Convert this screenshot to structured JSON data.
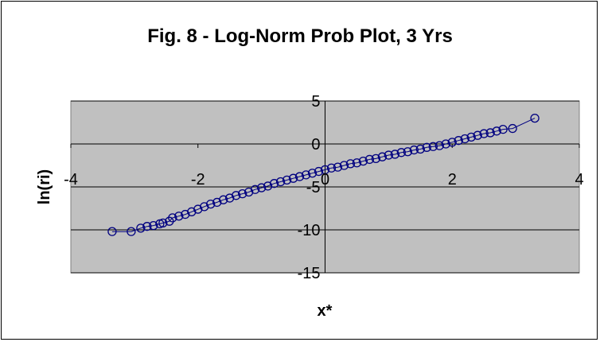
{
  "chart_data": {
    "type": "line",
    "title": "Fig. 8 - Log-Norm Prob Plot, 3 Yrs",
    "xlabel": "x*",
    "ylabel": "ln(ri)",
    "xlim": [
      -4,
      4
    ],
    "ylim": [
      -15,
      5
    ],
    "x_ticks": [
      "-4",
      "-2",
      "0",
      "2",
      "4"
    ],
    "y_ticks": [
      "5",
      "0",
      "-5",
      "-10",
      "-15"
    ],
    "grid": "horizontal",
    "legend": "none",
    "series": [
      {
        "marker": "open-circle",
        "line": true,
        "x": [
          -3.35,
          -3.05,
          -2.9,
          -2.8,
          -2.7,
          -2.6,
          -2.55,
          -2.45,
          -2.4,
          -2.3,
          -2.2,
          -2.1,
          -2.0,
          -1.9,
          -1.8,
          -1.7,
          -1.6,
          -1.5,
          -1.4,
          -1.3,
          -1.2,
          -1.1,
          -1.0,
          -0.9,
          -0.8,
          -0.7,
          -0.6,
          -0.5,
          -0.4,
          -0.3,
          -0.2,
          -0.1,
          0.0,
          0.1,
          0.2,
          0.3,
          0.4,
          0.5,
          0.6,
          0.7,
          0.8,
          0.9,
          1.0,
          1.1,
          1.2,
          1.3,
          1.4,
          1.5,
          1.6,
          1.7,
          1.8,
          1.9,
          2.0,
          2.1,
          2.2,
          2.3,
          2.4,
          2.5,
          2.6,
          2.7,
          2.8,
          2.95,
          3.3
        ],
        "y": [
          -10.2,
          -10.2,
          -9.8,
          -9.6,
          -9.5,
          -9.3,
          -9.2,
          -9.0,
          -8.6,
          -8.4,
          -8.2,
          -7.9,
          -7.6,
          -7.3,
          -7.0,
          -6.8,
          -6.5,
          -6.3,
          -6.0,
          -5.8,
          -5.6,
          -5.3,
          -5.1,
          -4.9,
          -4.6,
          -4.4,
          -4.2,
          -4.0,
          -3.8,
          -3.6,
          -3.4,
          -3.2,
          -3.0,
          -2.8,
          -2.7,
          -2.5,
          -2.3,
          -2.2,
          -2.0,
          -1.8,
          -1.7,
          -1.5,
          -1.3,
          -1.2,
          -1.0,
          -0.9,
          -0.7,
          -0.6,
          -0.4,
          -0.3,
          -0.2,
          0.0,
          0.2,
          0.4,
          0.6,
          0.8,
          1.0,
          1.2,
          1.3,
          1.5,
          1.7,
          1.8,
          3.0
        ]
      }
    ]
  }
}
